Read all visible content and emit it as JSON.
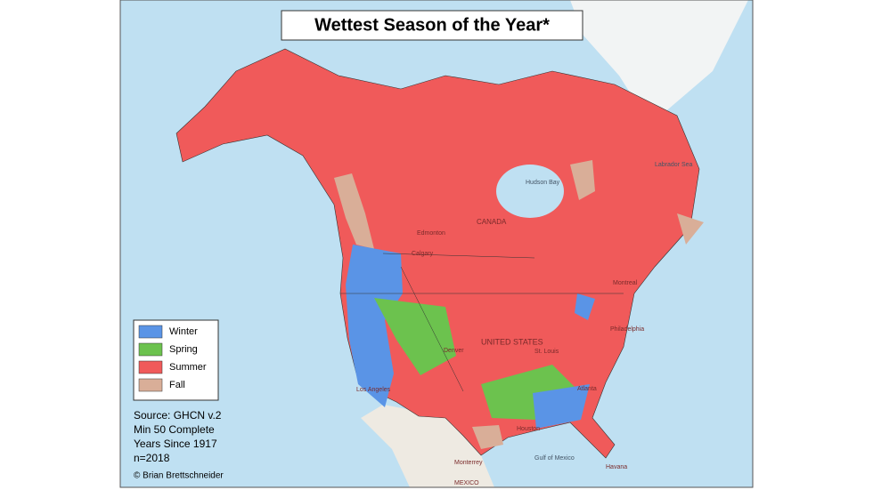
{
  "title": "Wettest Season of the Year*",
  "legend": [
    {
      "label": "Winter",
      "color": "#5a94e6"
    },
    {
      "label": "Spring",
      "color": "#6cc24e"
    },
    {
      "label": "Summer",
      "color": "#f05a5a"
    },
    {
      "label": "Fall",
      "color": "#d9ae98"
    }
  ],
  "source": [
    "Source: GHCN v.2",
    "Min 50 Complete",
    "Years Since 1917",
    "n=2018"
  ],
  "credit": "© Brian Brettschneider",
  "places": [
    "CANADA",
    "UNITED STATES",
    "MEXICO",
    "Hudson Bay",
    "Labrador Sea",
    "Gulf of Mexico",
    "Edmonton",
    "Calgary",
    "Denver",
    "Los Angeles",
    "Atlanta",
    "Houston",
    "Montreal",
    "Philadelphia",
    "St. Louis",
    "Monterrey",
    "Havana"
  ]
}
